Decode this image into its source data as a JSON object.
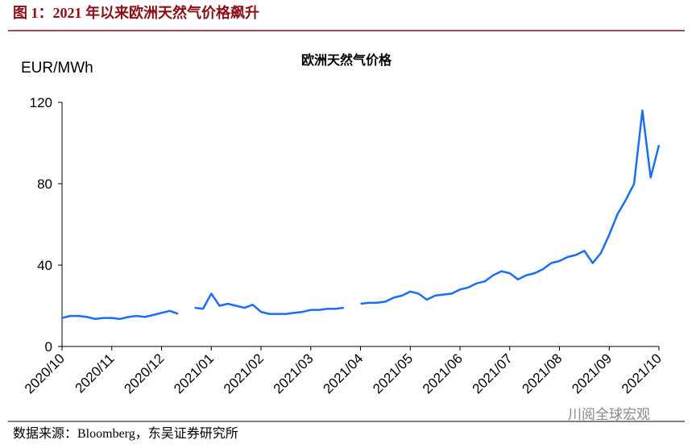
{
  "header": {
    "title": "图 1：2021 年以来欧洲天然气价格飙升"
  },
  "source": "数据来源：Bloomberg，东吴证券研究所",
  "watermark": "川阅全球宏观",
  "chart_data": {
    "type": "line",
    "title": "欧洲天然气价格",
    "y_label": "EUR/MWh",
    "categories": [
      "2020/10",
      null,
      null,
      null,
      null,
      null,
      "2020/11",
      null,
      null,
      null,
      null,
      null,
      "2020/12",
      null,
      null,
      null,
      null,
      null,
      "2021/01",
      null,
      null,
      null,
      null,
      null,
      "2021/02",
      null,
      null,
      null,
      null,
      null,
      "2021/03",
      null,
      null,
      null,
      null,
      null,
      "2021/04",
      null,
      null,
      null,
      null,
      null,
      "2021/05",
      null,
      null,
      null,
      null,
      null,
      "2021/06",
      null,
      null,
      null,
      null,
      null,
      "2021/07",
      null,
      null,
      null,
      null,
      null,
      "2021/08",
      null,
      null,
      null,
      null,
      null,
      "2021/09",
      null,
      null,
      null,
      null,
      null,
      "2021/10"
    ],
    "series": [
      {
        "name": "欧洲天然气价格",
        "color": "#1a6ef5",
        "values": [
          14,
          15,
          15,
          14.5,
          13.5,
          14,
          14,
          13.5,
          14.5,
          15,
          14.5,
          15.5,
          16.5,
          17.5,
          16,
          null,
          19,
          18.5,
          26,
          20,
          21,
          20,
          19,
          20.5,
          17,
          16,
          16,
          16,
          16.5,
          17,
          18,
          18,
          18.5,
          18.5,
          19,
          null,
          21,
          21.5,
          21.5,
          22,
          24,
          25,
          27,
          26,
          23,
          25,
          25.5,
          26,
          28,
          29,
          31,
          32,
          35,
          37,
          36,
          33,
          35,
          36,
          38,
          41,
          42,
          44,
          45,
          47,
          41,
          46,
          55,
          65,
          72,
          80,
          116,
          83,
          99
        ]
      }
    ],
    "ylim": [
      0,
      120
    ],
    "yticks": [
      0,
      40,
      80,
      120
    ],
    "grid": false
  }
}
